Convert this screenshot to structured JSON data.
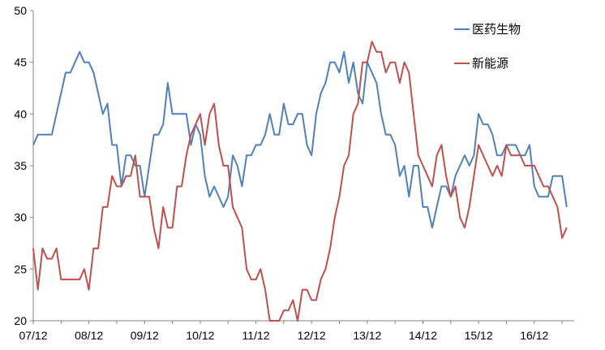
{
  "chart_data": {
    "type": "line",
    "title": "",
    "xlabel": "",
    "ylabel": "",
    "ylim": [
      20,
      50
    ],
    "yticks": [
      20,
      25,
      30,
      35,
      40,
      45,
      50
    ],
    "x_ticks": [
      "07/12",
      "08/12",
      "09/12",
      "10/12",
      "11/12",
      "12/12",
      "13/12",
      "14/12",
      "15/12",
      "16/12"
    ],
    "x_start": "2007-12",
    "grid": false,
    "legend_position": "top-right",
    "series": [
      {
        "name": "医药生物",
        "color": "#4f81bd",
        "values": [
          37,
          38,
          38,
          38,
          38,
          40,
          42,
          44,
          44,
          45,
          46,
          45,
          45,
          44,
          42,
          40,
          41,
          37,
          37,
          33,
          36,
          36,
          35,
          35,
          32,
          35,
          38,
          38,
          39,
          43,
          40,
          40,
          40,
          40,
          37,
          39,
          38,
          34,
          32,
          33,
          32,
          31,
          32,
          36,
          35,
          33,
          36,
          36,
          37,
          37,
          38,
          40,
          38,
          38,
          41,
          39,
          39,
          40,
          40,
          37,
          36,
          40,
          42,
          43,
          45,
          45,
          44,
          46,
          43,
          45,
          42,
          41,
          45,
          44,
          43,
          40,
          38,
          38,
          37,
          34,
          35,
          32,
          35,
          35,
          31,
          31,
          29,
          31,
          33,
          33,
          32,
          34,
          35,
          36,
          35,
          36,
          40,
          39,
          39,
          38,
          36,
          36,
          37,
          37,
          37,
          36,
          36,
          37,
          33,
          32,
          32,
          32,
          34,
          34,
          34,
          31
        ]
      },
      {
        "name": "新能源",
        "color": "#c0504d",
        "values": [
          27,
          23,
          27,
          26,
          26,
          27,
          24,
          24,
          24,
          24,
          24,
          25,
          23,
          27,
          27,
          31,
          31,
          34,
          33,
          33,
          34,
          34,
          36,
          32,
          32,
          32,
          29,
          27,
          31,
          29,
          29,
          33,
          33,
          36,
          38,
          39,
          40,
          37,
          40,
          41,
          37,
          35,
          35,
          31,
          30,
          29,
          25,
          24,
          24,
          25,
          23,
          20,
          20,
          20,
          21,
          21,
          22,
          20,
          23,
          23,
          22,
          22,
          24,
          25,
          27,
          30,
          32,
          35,
          36,
          40,
          41,
          45,
          45,
          47,
          46,
          46,
          44,
          45,
          45,
          43,
          45,
          44,
          40,
          36,
          35,
          34,
          33,
          36,
          37,
          34,
          32,
          33,
          30,
          29,
          31,
          34,
          37,
          36,
          35,
          34,
          35,
          34,
          37,
          36,
          36,
          36,
          35,
          35,
          35,
          34,
          33,
          33,
          32,
          31,
          28,
          29
        ]
      }
    ]
  }
}
